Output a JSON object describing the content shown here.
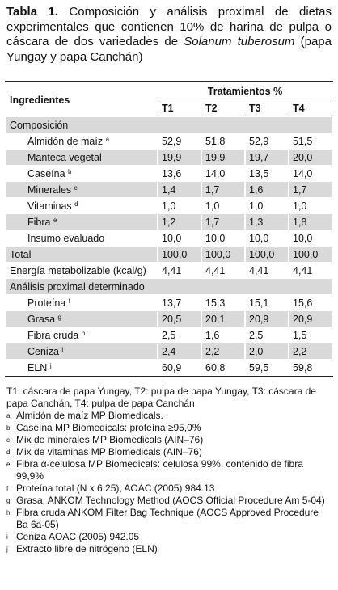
{
  "title": {
    "label": "Tabla 1.",
    "text": "Composición y análisis proximal de dietas experimentales que contienen 10% de harina de pulpa o cáscara de dos variedades de",
    "species": "Solanum tuberosum",
    "note": "(papa Yungay y papa Canchán)"
  },
  "table": {
    "header": {
      "ingredients": "Ingredientes",
      "group": "Tratamientos %",
      "columns": [
        "T1",
        "T2",
        "T3",
        "T4"
      ]
    },
    "body": [
      {
        "label": "Composición",
        "rows": [
          {
            "label": "Almidón de maíz",
            "sup": "a",
            "values": [
              "52,9",
              "51,8",
              "52,9",
              "51,5"
            ]
          },
          {
            "label": "Manteca vegetal",
            "values": [
              "19,9",
              "19,9",
              "19,7",
              "20,0"
            ]
          },
          {
            "label": "Caseína",
            "sup": "b",
            "values": [
              "13,6",
              "14,0",
              "13,5",
              "14,0"
            ]
          },
          {
            "label": "Minerales",
            "sup": "c",
            "values": [
              "1,4",
              "1,7",
              "1,6",
              "1,7"
            ]
          },
          {
            "label": "Vitaminas",
            "sup": "d",
            "values": [
              "1,0",
              "1,0",
              "1,0",
              "1,0"
            ]
          },
          {
            "label": "Fibra",
            "sup": "e",
            "values": [
              "1,2",
              "1,7",
              "1,3",
              "1,8"
            ]
          },
          {
            "label": "Insumo evaluado",
            "values": [
              "10,0",
              "10,0",
              "10,0",
              "10,0"
            ]
          }
        ]
      },
      {
        "label": "Total",
        "values": [
          "100,0",
          "100,0",
          "100,0",
          "100,0"
        ]
      },
      {
        "label": "Energía metabolizable (kcal/g)",
        "values": [
          "4,41",
          "4,41",
          "4,41",
          "4,41"
        ]
      },
      {
        "label": "Análisis proximal determinado",
        "rows": [
          {
            "label": "Proteína",
            "sup": "f",
            "values": [
              "13,7",
              "15,3",
              "15,1",
              "15,6"
            ]
          },
          {
            "label": "Grasa",
            "sup": "g",
            "values": [
              "20,5",
              "20,1",
              "20,9",
              "20,9"
            ]
          },
          {
            "label": "Fibra cruda",
            "sup": "h",
            "values": [
              "2,5",
              "1,6",
              "2,5",
              "1,5"
            ]
          },
          {
            "label": "Ceniza",
            "sup": "i",
            "values": [
              "2,4",
              "2,2",
              "2,0",
              "2,2"
            ]
          },
          {
            "label": "ELN",
            "sup": "j",
            "values": [
              "60,9",
              "60,8",
              "59,5",
              "59,8"
            ]
          }
        ]
      }
    ]
  },
  "footnotes": {
    "legend": "T1: cáscara de papa Yungay, T2: pulpa de papa Yungay, T3: cáscara de papa Canchán, T4: pulpa de papa Canchán",
    "notes": [
      {
        "mark": "a",
        "text": "Almidón de maíz MP Biomedicals."
      },
      {
        "mark": "b",
        "text": "Caseína MP Biomedicals: proteína ≥95,0%"
      },
      {
        "mark": "c",
        "text": "Mix de minerales MP Biomedicals (AIN–76)"
      },
      {
        "mark": "d",
        "text": "Mix de vitaminas MP Biomedicals (AIN–76)"
      },
      {
        "mark": "e",
        "text": "Fibra α-celulosa MP Biomedicals: celulosa 99%, contenido de fibra 99,9%"
      },
      {
        "mark": "f",
        "text": "Proteína total (N x 6.25), AOAC (2005) 984.13"
      },
      {
        "mark": "g",
        "text": "Grasa, ANKOM Technology Method (AOCS Official Procedure Am 5-04)"
      },
      {
        "mark": "h",
        "text": "Fibra cruda ANKOM Filter Bag Technique (AOCS Approved Procedure Ba 6a-05)"
      },
      {
        "mark": "i",
        "text": "Ceniza AOAC (2005) 942.05"
      },
      {
        "mark": "j",
        "text": "Extracto libre de nitrógeno (ELN)"
      }
    ]
  }
}
